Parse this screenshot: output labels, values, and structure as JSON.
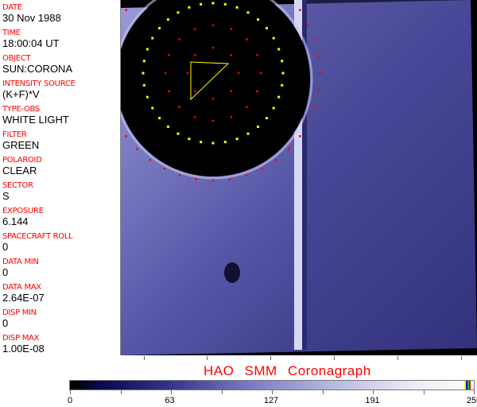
{
  "metadata": [
    {
      "label": "DATE",
      "value": "30 Nov 1988"
    },
    {
      "label": "TIME",
      "value": "18:00:04 UT"
    },
    {
      "label": "OBJECT",
      "value": "SUN:CORONA"
    },
    {
      "label": "INTENSITY SOURCE",
      "value": "(K+F)*V"
    },
    {
      "label": "TYPE-OBS",
      "value": "WHITE LIGHT"
    },
    {
      "label": "FILTER",
      "value": "GREEN"
    },
    {
      "label": "POLAROID",
      "value": "CLEAR"
    },
    {
      "label": "SECTOR",
      "value": "S"
    },
    {
      "label": "EXPOSURE",
      "value": "6.144"
    },
    {
      "label": "SPACECRAFT ROLL",
      "value": "0"
    },
    {
      "label": "DATA MIN",
      "value": "0"
    },
    {
      "label": "DATA MAX",
      "value": "2.64E-07"
    },
    {
      "label": "DISP MIN",
      "value": "0"
    },
    {
      "label": "DISP MAX",
      "value": "1.00E-08"
    }
  ],
  "title": "HAO  SMM Coronagraph",
  "colorbar": {
    "ticks": [
      "0",
      "63",
      "127",
      "191",
      "255"
    ],
    "colors": {
      "low": "#000000",
      "mid": "#7c7cc5",
      "high": "#fafafa"
    }
  }
}
